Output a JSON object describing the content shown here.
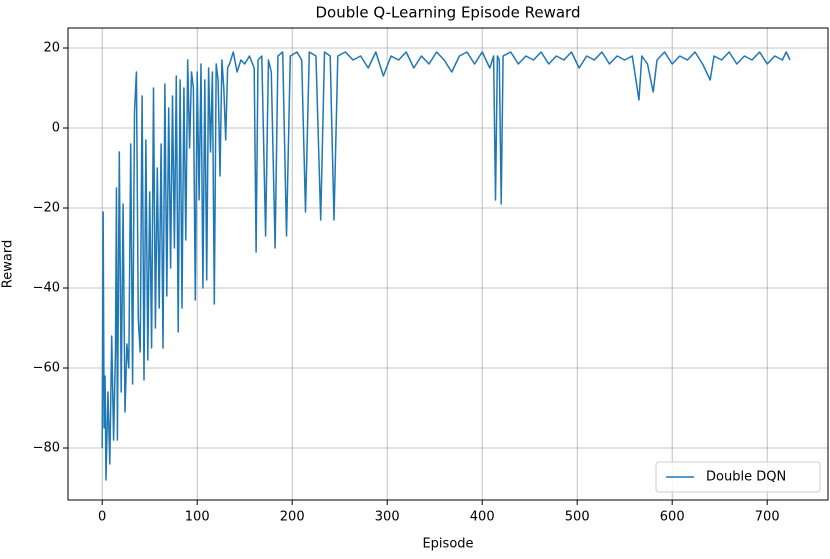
{
  "chart_data": {
    "type": "line",
    "title": "Double Q-Learning Episode Reward",
    "x_label": "Episode",
    "y_label": "Reward",
    "x": [
      0,
      1,
      2,
      3,
      4,
      6,
      8,
      10,
      12,
      14,
      15,
      16,
      18,
      20,
      22,
      24,
      26,
      28,
      30,
      32,
      34,
      36,
      38,
      40,
      42,
      44,
      46,
      48,
      50,
      52,
      54,
      56,
      58,
      60,
      62,
      64,
      66,
      68,
      70,
      72,
      74,
      76,
      78,
      80,
      82,
      84,
      86,
      88,
      90,
      92,
      94,
      96,
      98,
      100,
      102,
      104,
      106,
      108,
      110,
      112,
      114,
      116,
      118,
      120,
      122,
      124,
      126,
      128,
      130,
      132,
      134,
      138,
      142,
      146,
      150,
      155,
      160,
      162,
      164,
      168,
      172,
      175,
      178,
      182,
      185,
      190,
      194,
      198,
      205,
      210,
      214,
      218,
      225,
      230,
      234,
      240,
      244,
      248,
      256,
      264,
      272,
      280,
      288,
      296,
      304,
      312,
      320,
      328,
      336,
      344,
      352,
      360,
      368,
      376,
      384,
      392,
      400,
      408,
      412,
      414,
      416,
      418,
      420,
      422,
      430,
      438,
      446,
      454,
      462,
      470,
      478,
      486,
      494,
      502,
      510,
      518,
      526,
      534,
      542,
      550,
      558,
      565,
      568,
      574,
      580,
      584,
      592,
      600,
      608,
      616,
      624,
      632,
      640,
      644,
      652,
      660,
      668,
      676,
      684,
      692,
      700,
      708,
      716,
      720,
      724
    ],
    "series": [
      {
        "name": "Double DQN",
        "color": "#1f77b4",
        "values": [
          -80,
          -21,
          -75,
          -62,
          -88,
          -66,
          -84,
          -52,
          -78,
          -55,
          -15,
          -78,
          -6,
          -66,
          -19,
          -71,
          -54,
          -60,
          -4,
          -64,
          4,
          14,
          -48,
          -56,
          8,
          -63,
          -3,
          -58,
          -16,
          -55,
          10,
          -50,
          -10,
          -45,
          -4,
          -55,
          11,
          -42,
          5,
          -35,
          8,
          -30,
          13,
          -51,
          12,
          -45,
          10,
          -28,
          17,
          -5,
          14,
          10,
          -43,
          14,
          -18,
          16,
          -40,
          12,
          -38,
          15,
          -6,
          14,
          -44,
          16,
          12,
          -12,
          17,
          10,
          -3,
          15,
          16,
          19,
          14,
          17,
          16,
          18,
          15,
          -31,
          17,
          18,
          -27,
          17,
          14,
          -30,
          18,
          19,
          -27,
          18,
          19,
          17,
          -21,
          19,
          18,
          -23,
          19,
          18,
          -23,
          18,
          19,
          17,
          18,
          15,
          19,
          13,
          18,
          17,
          19,
          15,
          18,
          16,
          19,
          17,
          14,
          18,
          19,
          16,
          19,
          15,
          18,
          -18,
          18,
          17,
          -19,
          18,
          19,
          16,
          18,
          17,
          19,
          16,
          18,
          17,
          19,
          15,
          18,
          17,
          19,
          16,
          18,
          17,
          18,
          7,
          18,
          16,
          9,
          17,
          19,
          16,
          18,
          17,
          19,
          16,
          12,
          18,
          17,
          19,
          16,
          18,
          17,
          19,
          16,
          18,
          17,
          19,
          17
        ]
      }
    ],
    "xlim": [
      -36,
      764
    ],
    "ylim": [
      -93,
      25
    ],
    "xticks": [
      0,
      100,
      200,
      300,
      400,
      500,
      600,
      700
    ],
    "yticks": [
      {
        "value": -80,
        "label": "−80"
      },
      {
        "value": -60,
        "label": "−60"
      },
      {
        "value": -40,
        "label": "−40"
      },
      {
        "value": -20,
        "label": "−20"
      },
      0,
      20
    ],
    "grid": true,
    "legend": "lower right"
  }
}
